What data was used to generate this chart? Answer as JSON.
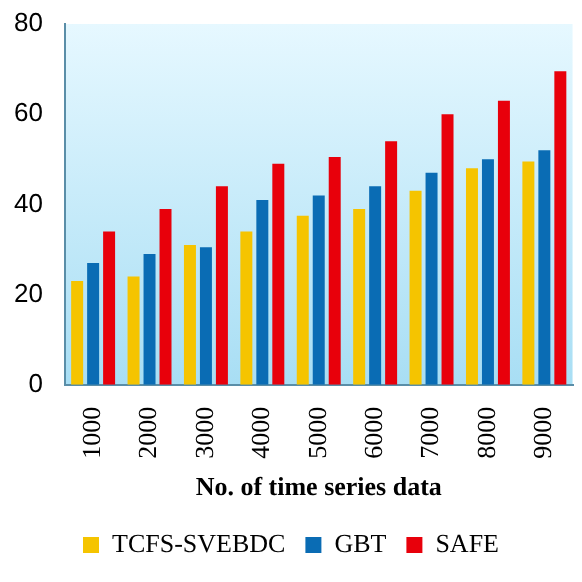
{
  "chart_data": {
    "type": "bar",
    "xlabel": "No. of time series data",
    "categories": [
      "1000",
      "2000",
      "3000",
      "4000",
      "5000",
      "6000",
      "7000",
      "8000",
      "9000"
    ],
    "series": [
      {
        "name": "TCFS-SVEBDC",
        "color": "#f5c400",
        "values": [
          23,
          24,
          31,
          34,
          37.5,
          39,
          43,
          48,
          49.5
        ]
      },
      {
        "name": "GBT",
        "color": "#0a6cb4",
        "values": [
          27,
          29,
          30.5,
          41,
          42,
          44,
          47,
          50,
          52
        ]
      },
      {
        "name": "SAFE",
        "color": "#e8000b",
        "values": [
          34,
          39,
          44,
          49,
          50.5,
          54,
          60,
          63,
          69.5
        ]
      }
    ],
    "ylim": [
      0,
      80
    ],
    "yticks": [
      0,
      20,
      40,
      60,
      80
    ],
    "grid": false,
    "legend": "bottom"
  }
}
